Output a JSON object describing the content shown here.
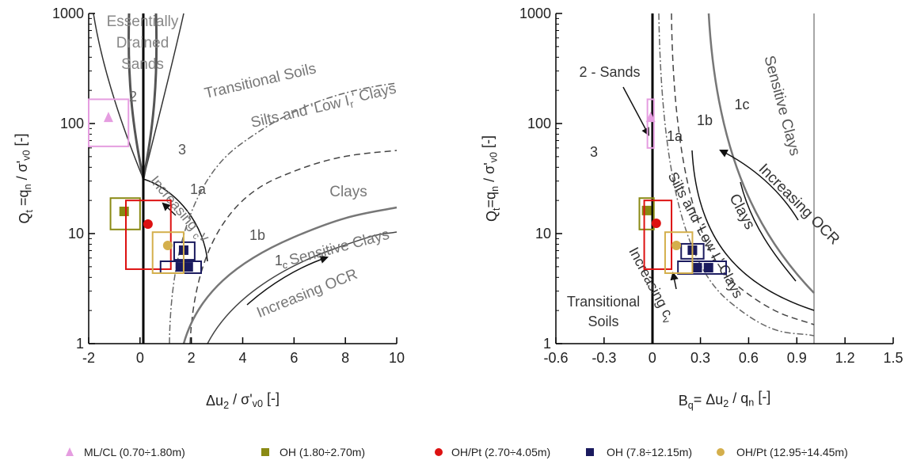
{
  "chart_data": [
    {
      "type": "scatter",
      "x_label": [
        "Δu",
        "2",
        " / σ'",
        "v0",
        " [-]"
      ],
      "y_label": [
        "Q",
        "t",
        " =q",
        "n",
        " / σ'",
        "v0",
        " [-]"
      ],
      "xlim": [
        -2,
        10
      ],
      "xticks": [
        -2,
        0,
        2,
        4,
        6,
        8,
        10
      ],
      "ylim": [
        1,
        1000
      ],
      "yticks": [
        1,
        10,
        100,
        1000
      ],
      "y_scale": "log",
      "annotations": [
        [
          "Essentially"
        ],
        [
          "Drained"
        ],
        [
          "Sands"
        ],
        [
          "2"
        ],
        [
          "Transitional Soils"
        ],
        [
          "3"
        ],
        [
          "Silts and 'Low I",
          "r",
          "' Clays"
        ],
        [
          "1a"
        ],
        [
          "Clays"
        ],
        [
          "1b"
        ],
        [
          "1",
          "c"
        ],
        [
          "Sensitive Clays"
        ],
        [
          "Increasing OCR"
        ],
        [
          "Increasing ",
          "c",
          "v"
        ]
      ],
      "series": [
        {
          "name": "ML/CL (0.70÷1.80m)",
          "color": "#e59de0",
          "marker": "triangle",
          "x": [
            -1.23
          ],
          "y": [
            114
          ],
          "boxes": [
            {
              "x": [
                -2.0,
                -0.45
              ],
              "y": [
                62,
                166
              ]
            }
          ]
        },
        {
          "name": "OH (1.80÷2.70m)",
          "color": "#8a8a14",
          "marker": "square",
          "x": [
            -0.62
          ],
          "y": [
            15.9
          ],
          "boxes": [
            {
              "x": [
                -1.15,
                0
              ],
              "y": [
                10.9,
                21
              ]
            }
          ]
        },
        {
          "name": "OH/Pt (2.70÷4.05m)",
          "color": "#dd1111",
          "marker": "circle",
          "x": [
            0.31
          ],
          "y": [
            12.2
          ],
          "boxes": [
            {
              "x": [
                -0.55,
                1.2
              ],
              "y": [
                4.75,
                20
              ]
            }
          ]
        },
        {
          "name": "OH (7.8÷12.15m)",
          "color": "#1a1a5e",
          "marker": "square",
          "x": [
            1.7,
            1.57,
            1.88
          ],
          "y": [
            7.07,
            4.98,
            4.98
          ],
          "boxes": [
            {
              "x": [
                1.33,
                2.13
              ],
              "y": [
                5.78,
                8.35
              ]
            },
            {
              "x": [
                0.8,
                2.38
              ],
              "y": [
                4.37,
                5.6
              ]
            }
          ]
        },
        {
          "name": "OH/Pt (12.95÷14.45m)",
          "color": "#d4af4c",
          "marker": "circle",
          "x": [
            1.08
          ],
          "y": [
            7.8
          ],
          "boxes": [
            {
              "x": [
                0.49,
                1.7
              ],
              "y": [
                4.37,
                10.3
              ]
            }
          ]
        }
      ]
    },
    {
      "type": "scatter",
      "x_label": [
        "B",
        "q",
        "= Δu",
        "2",
        " / q",
        "n",
        " [-]"
      ],
      "y_label": [
        "Q",
        "t",
        "=q",
        "n",
        " / σ'",
        "v0",
        " [-]"
      ],
      "xlim": [
        -0.6,
        1.5
      ],
      "xticks": [
        -0.6,
        -0.3,
        0,
        0.3,
        0.6,
        0.9,
        1.2,
        1.5
      ],
      "ylim": [
        1,
        1000
      ],
      "yticks": [
        1,
        10,
        100,
        1000
      ],
      "y_scale": "log",
      "annotations": [
        [
          "2 - Sands"
        ],
        [
          "3"
        ],
        [
          "1a"
        ],
        [
          "1b"
        ],
        [
          "1c"
        ],
        [
          "Sensitive Clays"
        ],
        [
          "Increasing OCR"
        ],
        [
          "Clays"
        ],
        [
          "Silts and 'Low I",
          "r",
          "' Clays"
        ],
        [
          "Increasing c",
          "v"
        ],
        [
          "Transitional"
        ],
        [
          "Soils"
        ]
      ],
      "series": [
        {
          "color": "#e59de0",
          "marker": "triangle",
          "x": [
            -0.01
          ],
          "y": [
            114
          ],
          "boxes": [
            {
              "x": [
                -0.03,
                0.01
              ],
              "y": [
                60,
                166
              ]
            }
          ]
        },
        {
          "color": "#8a8a14",
          "marker": "square",
          "x": [
            -0.035
          ],
          "y": [
            16.2
          ],
          "boxes": [
            {
              "x": [
                -0.08,
                0.01
              ],
              "y": [
                10.9,
                21
              ]
            }
          ]
        },
        {
          "color": "#dd1111",
          "marker": "circle",
          "x": [
            0.025
          ],
          "y": [
            12.4
          ],
          "boxes": [
            {
              "x": [
                -0.05,
                0.12
              ],
              "y": [
                4.75,
                20
              ]
            }
          ]
        },
        {
          "color": "#1a1a5e",
          "marker": "square",
          "x": [
            0.25,
            0.28,
            0.35
          ],
          "y": [
            7.07,
            4.9,
            4.9
          ],
          "boxes": [
            {
              "x": [
                0.18,
                0.32
              ],
              "y": [
                5.9,
                8.07
              ]
            },
            {
              "x": [
                0.16,
                0.46
              ],
              "y": [
                4.3,
                5.6
              ]
            }
          ]
        },
        {
          "color": "#d4af4c",
          "marker": "circle",
          "x": [
            0.15
          ],
          "y": [
            7.8
          ],
          "boxes": [
            {
              "x": [
                0.08,
                0.25
              ],
              "y": [
                4.37,
                10.3
              ]
            }
          ]
        }
      ]
    }
  ]
}
